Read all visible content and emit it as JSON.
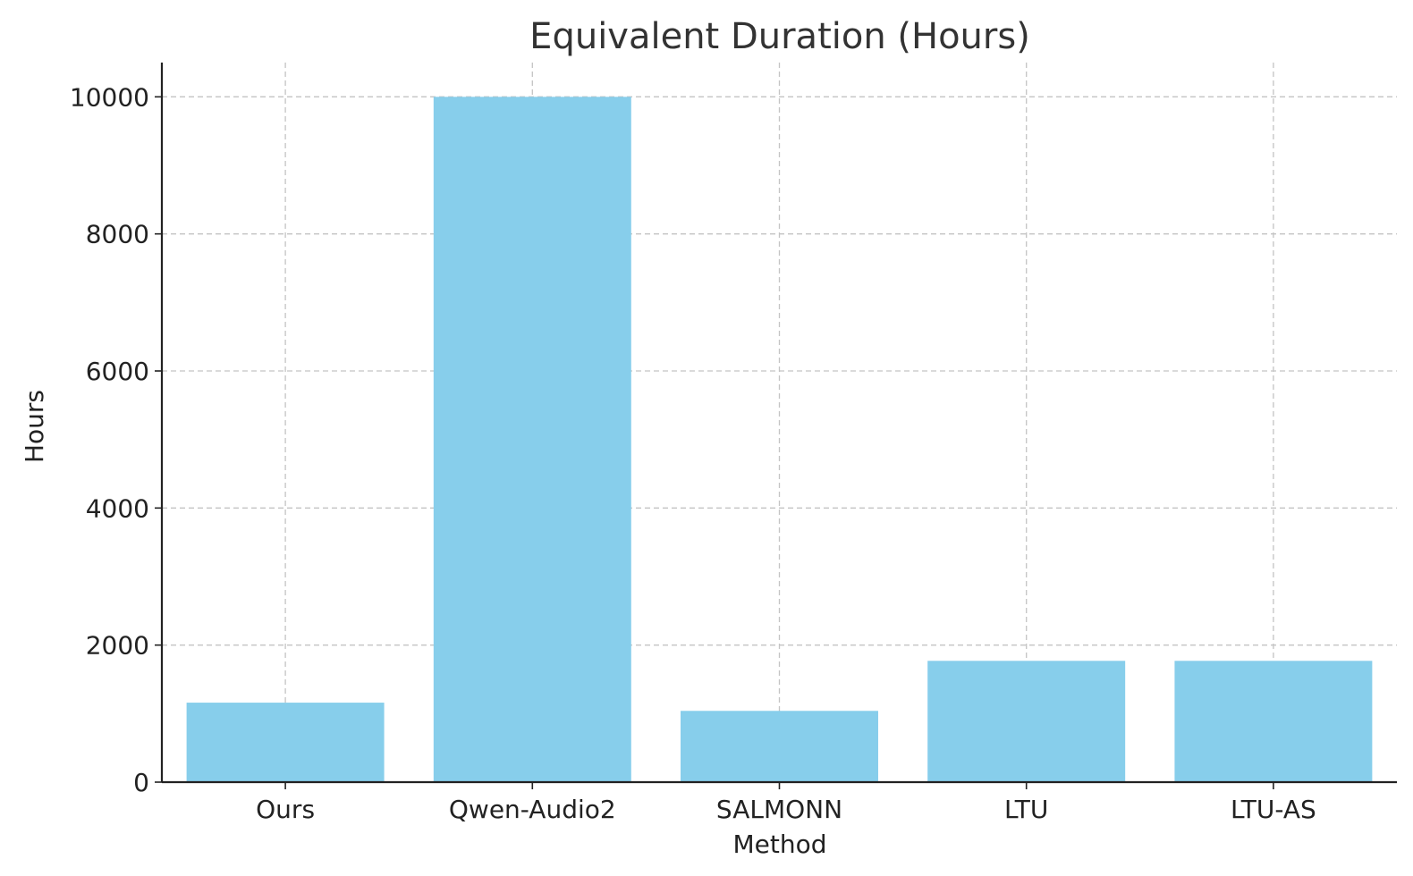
{
  "chart_data": {
    "type": "bar",
    "title": "Equivalent Duration (Hours)",
    "xlabel": "Method",
    "ylabel": "Hours",
    "categories": [
      "Ours",
      "Qwen-Audio2",
      "SALMONN",
      "LTU",
      "LTU-AS"
    ],
    "values": [
      1160,
      10000,
      1040,
      1770,
      1770
    ],
    "ylim": [
      0,
      10500
    ],
    "yticks": [
      0,
      2000,
      4000,
      6000,
      8000,
      10000
    ],
    "grid": true,
    "bar_color": "#87CEEB"
  }
}
